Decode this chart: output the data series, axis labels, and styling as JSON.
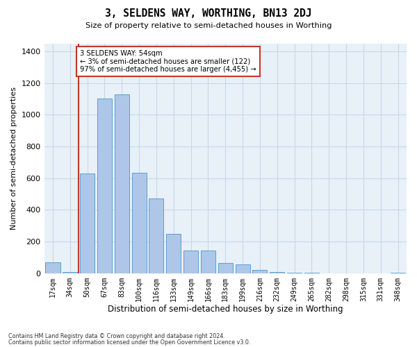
{
  "title": "3, SELDENS WAY, WORTHING, BN13 2DJ",
  "subtitle": "Size of property relative to semi-detached houses in Worthing",
  "xlabel": "Distribution of semi-detached houses by size in Worthing",
  "ylabel": "Number of semi-detached properties",
  "categories": [
    "17sqm",
    "34sqm",
    "50sqm",
    "67sqm",
    "83sqm",
    "100sqm",
    "116sqm",
    "133sqm",
    "149sqm",
    "166sqm",
    "183sqm",
    "199sqm",
    "216sqm",
    "232sqm",
    "249sqm",
    "265sqm",
    "282sqm",
    "298sqm",
    "315sqm",
    "331sqm",
    "348sqm"
  ],
  "values": [
    70,
    10,
    630,
    1100,
    1130,
    635,
    470,
    250,
    145,
    145,
    65,
    55,
    20,
    8,
    5,
    2,
    0,
    0,
    0,
    0,
    5
  ],
  "bar_color": "#aec6e8",
  "bar_edge_color": "#5a9fd4",
  "property_label": "3 SELDENS WAY: 54sqm",
  "pct_smaller": 3,
  "n_smaller": 122,
  "pct_larger": 97,
  "n_larger": 4455,
  "vline_x_index": 2,
  "vline_color": "#c0392b",
  "annotation_box_color": "#c0392b",
  "ylim": [
    0,
    1450
  ],
  "yticks": [
    0,
    200,
    400,
    600,
    800,
    1000,
    1200,
    1400
  ],
  "grid_color": "#c8d8e8",
  "bg_color": "#e8f0f8",
  "footnote1": "Contains HM Land Registry data © Crown copyright and database right 2024.",
  "footnote2": "Contains public sector information licensed under the Open Government Licence v3.0."
}
